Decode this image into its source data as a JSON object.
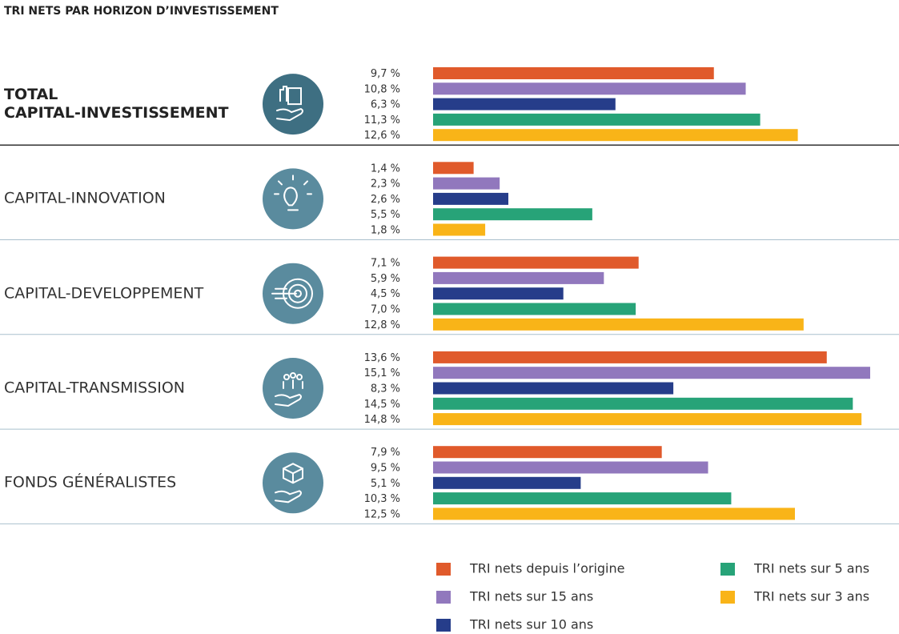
{
  "chart_data": {
    "type": "bar",
    "orientation": "horizontal",
    "title": "TRI NETS PAR HORIZON D’INVESTISSEMENT",
    "categories": [
      "TOTAL\nCAPITAL-INVESTISSEMENT",
      "CAPITAL-INNOVATION",
      "CAPITAL-DEVELOPPEMENT",
      "CAPITAL-TRANSMISSION",
      "FONDS GÉNÉRALISTES"
    ],
    "series": [
      {
        "name": "TRI nets depuis l’origine",
        "color": "#e05a2b",
        "values": [
          9.7,
          1.4,
          7.1,
          13.6,
          7.9
        ],
        "value_labels": [
          "9,7 %",
          "1,4 %",
          "7,1 %",
          "13,6 %",
          "7,9 %"
        ]
      },
      {
        "name": "TRI nets sur 15 ans",
        "color": "#9178bd",
        "values": [
          10.8,
          2.3,
          5.9,
          15.1,
          9.5
        ],
        "value_labels": [
          "10,8 %",
          "2,3 %",
          "5,9 %",
          "15,1 %",
          "9,5 %"
        ]
      },
      {
        "name": "TRI nets sur 10 ans",
        "color": "#263d8a",
        "values": [
          6.3,
          2.6,
          4.5,
          8.3,
          5.1
        ],
        "value_labels": [
          "6,3 %",
          "2,6 %",
          "4,5 %",
          "8,3 %",
          "5,1 %"
        ]
      },
      {
        "name": "TRI nets sur 5 ans",
        "color": "#27a378",
        "values": [
          11.3,
          5.5,
          7.0,
          14.5,
          10.3
        ],
        "value_labels": [
          "11,3 %",
          "5,5 %",
          "7,0 %",
          "14,5 %",
          "10,3 %"
        ]
      },
      {
        "name": "TRI nets sur 3 ans",
        "color": "#f9b418",
        "values": [
          12.6,
          1.8,
          12.8,
          14.8,
          12.5
        ],
        "value_labels": [
          "12,6 %",
          "1,8 %",
          "12,8 %",
          "14,8 %",
          "12,5 %"
        ]
      }
    ]
  }
}
